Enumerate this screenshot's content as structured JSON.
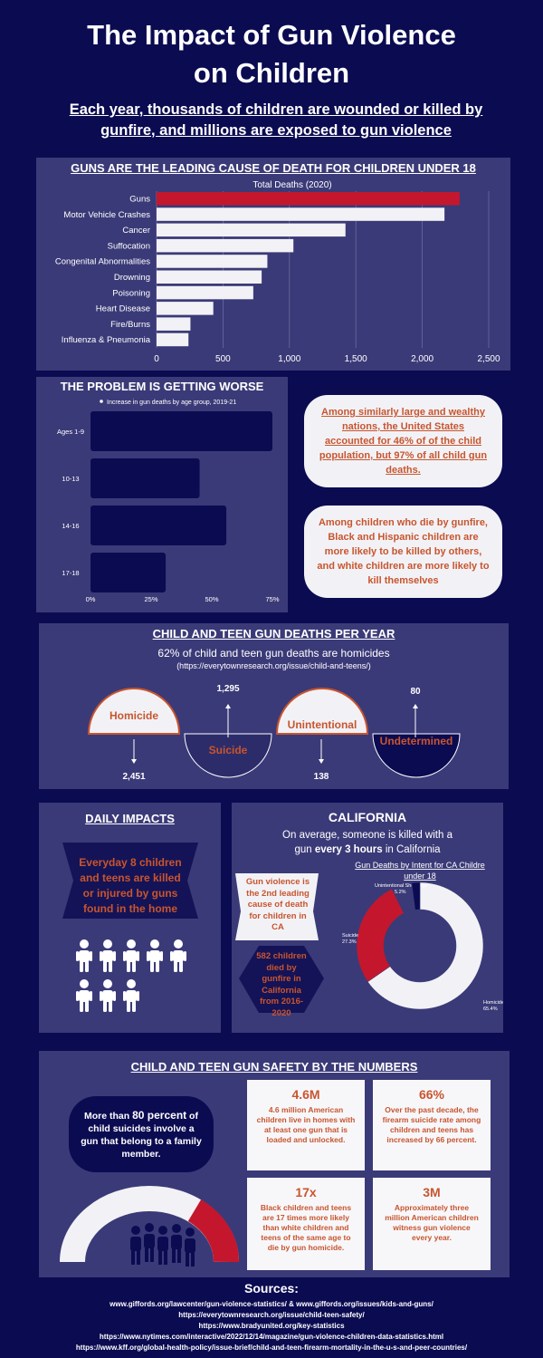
{
  "header": {
    "title_line1": "The Impact of Gun Violence",
    "title_line2": "on Children",
    "subtitle_line1": "Each year, thousands of children are wounded or killed by",
    "subtitle_line2": "gunfire, and millions are exposed to gun violence"
  },
  "section1": {
    "heading": "GUNS ARE THE LEADING CAUSE OF DEATH FOR CHILDREN UNDER 18"
  },
  "section2": {
    "heading": "THE PROBLEM IS GETTING WORSE",
    "card1": "Among similarly large and wealthy nations, the United States accounted for 46% of of the child population, but 97% of all child gun deaths.",
    "card2_parts": [
      "Among children who die by gunfire, ",
      "Black and Hispanic children",
      " are more likely to be ",
      "killed by others",
      ", and ",
      "white children",
      " are more likely to ",
      "kill themselves"
    ]
  },
  "section3": {
    "heading": "CHILD AND TEEN GUN DEATHS PER YEAR",
    "sub": "62% of child and teen gun deaths are homicides",
    "url": "(https://everytownresearch.org/issue/child-and-teens/)",
    "items": [
      {
        "label": "Homicide",
        "value": "2,451"
      },
      {
        "label": "Suicide",
        "value": "1,295"
      },
      {
        "label": "Unintentional",
        "value": "138"
      },
      {
        "label": "Undetermined",
        "value": "80"
      }
    ]
  },
  "daily": {
    "heading": "DAILY IMPACTS",
    "text": "Everyday 8 children and teens are killed or injured by guns found in the home"
  },
  "california": {
    "heading": "CALIFORNIA",
    "line1": "On average, someone is killed with a",
    "line2_pre": "gun ",
    "line2_bold": "every 3 hours",
    "line2_post": " in California",
    "fact1": "Gun violence is the 2nd leading cause of death for children in CA",
    "fact2": "582 children died by gunfire in California from 2016-2020"
  },
  "numbers": {
    "heading": "CHILD AND TEEN GUN SAFETY BY THE NUMBERS",
    "pill_pre": "More than ",
    "pill_bold": "80 percent",
    "pill_post": " of child suicides involve a gun that belong to a family member.",
    "stats": [
      {
        "big": "4.6M",
        "text": "4.6 million American children live in homes with at least one gun that is loaded and unlocked."
      },
      {
        "big": "66%",
        "text": "Over the past decade, the firearm suicide rate among children and teens has increased by 66 percent."
      },
      {
        "big": "17x",
        "text": "Black children and teens are 17 times more likely than white children and teens of the same age to die by gun homicide."
      },
      {
        "big": "3M",
        "text": "Approximately three million American children witness gun violence every year."
      }
    ]
  },
  "sources": {
    "heading": "Sources:",
    "lines": [
      "www.giffords.org/lawcenter/gun-violence-statistics/ & www.giffords.org/issues/kids-and-guns/",
      "https://everytownresearch.org/issue/child-teen-safety/",
      "https://www.bradyunited.org/key-statistics",
      "https://www.nytimes.com/interactive/2022/12/14/magazine/gun-violence-children-data-statistics.html",
      "https://www.kff.org/global-health-policy/issue-brief/child-and-teen-firearm-mortality-in-the-u-s-and-peer-countries/"
    ]
  },
  "colors": {
    "navy": "#0b0b52",
    "panel": "#3b3a78",
    "red": "#c4172d",
    "orange": "#c8552e",
    "white": "#f2f2f6"
  },
  "chart_data": [
    {
      "type": "bar",
      "orientation": "horizontal",
      "title": "Total Deaths (2020)",
      "categories": [
        "Guns",
        "Motor Vehicle Crashes",
        "Cancer",
        "Suffocation",
        "Congenital Abnormalities",
        "Drowning",
        "Poisoning",
        "Heart Disease",
        "Fire/Burns",
        "Influenza & Pneumonia"
      ],
      "values": [
        2281,
        2167,
        1422,
        1030,
        834,
        791,
        728,
        427,
        255,
        240
      ],
      "highlight": "Guns",
      "xlim": [
        0,
        2500
      ],
      "xticks": [
        "0",
        "500",
        "1,000",
        "1,500",
        "2,000",
        "2,500"
      ],
      "grid": true
    },
    {
      "type": "bar",
      "orientation": "horizontal",
      "legend": "Increase in gun deaths by age group, 2019-21",
      "categories": [
        "Ages 1-9",
        "10-13",
        "14-16",
        "17-18"
      ],
      "values": [
        75,
        45,
        56,
        31
      ],
      "unit": "%",
      "xlim": [
        0,
        75
      ],
      "xticks": [
        "0%",
        "25%",
        "50%",
        "75%"
      ]
    },
    {
      "type": "pie",
      "donut": true,
      "title": "Gun Deaths by Intent for CA Children under 18",
      "slices": [
        {
          "label": "Homicide",
          "value": 65.4,
          "display": "65.4%",
          "color": "#f2f2f6"
        },
        {
          "label": "Suicide",
          "value": 27.3,
          "display": "27.3%",
          "color": "#c4172d"
        },
        {
          "label": "Unintentional Shootings",
          "value": 5.2,
          "display": "5.2%",
          "color": "#3b3a78"
        },
        {
          "label": "",
          "value": 2.1,
          "display": "",
          "color": "#0b0b52"
        }
      ]
    }
  ]
}
